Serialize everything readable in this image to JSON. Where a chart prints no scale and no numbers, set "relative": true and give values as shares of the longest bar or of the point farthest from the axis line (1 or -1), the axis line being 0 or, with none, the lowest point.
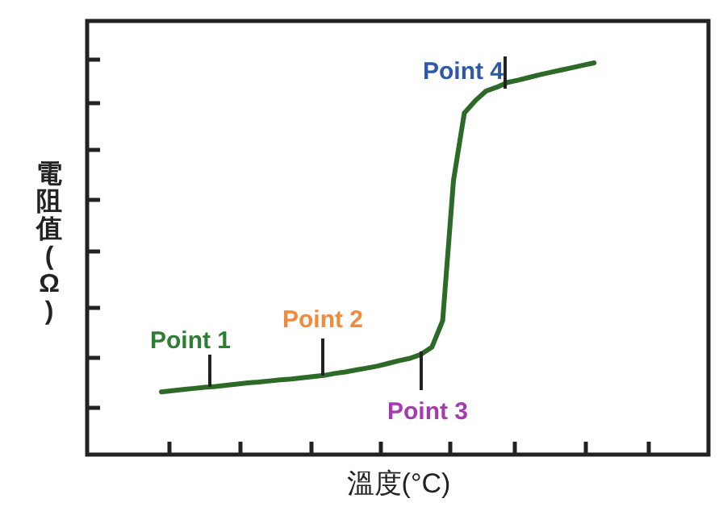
{
  "chart_data": {
    "type": "line",
    "xlabel": "溫度(°C)",
    "ylabel": "電阻值(Ω)",
    "relative": true,
    "categories": [
      null,
      null,
      null,
      null,
      null,
      null,
      null,
      null,
      null,
      null,
      null,
      null,
      null,
      null,
      null,
      null,
      null,
      null,
      null,
      null,
      null,
      null,
      null,
      null,
      null,
      null,
      null,
      null,
      null,
      null,
      null,
      null,
      null,
      null,
      null,
      null,
      null,
      null,
      null,
      null,
      null
    ],
    "series": [
      {
        "color": "#2d6a27",
        "values": [
          0.16,
          0.163,
          0.166,
          0.169,
          0.172,
          0.174,
          0.177,
          0.18,
          0.183,
          0.185,
          0.188,
          0.191,
          0.193,
          0.196,
          0.199,
          0.202,
          0.207,
          0.211,
          0.216,
          0.221,
          0.226,
          0.233,
          0.24,
          0.246,
          0.256,
          0.274,
          0.342,
          0.7,
          0.872,
          0.903,
          0.928,
          0.938,
          0.95,
          0.956,
          0.963,
          0.97,
          0.976,
          0.982,
          0.988,
          0.994,
          1.0
        ]
      }
    ],
    "annotations": [
      "Point 1",
      "Point 2",
      "Point 3",
      "Point 4"
    ]
  }
}
